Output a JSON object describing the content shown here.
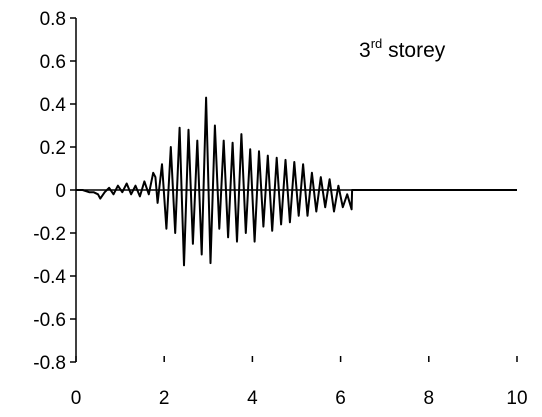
{
  "chart_data": {
    "type": "line",
    "title": "",
    "xlabel": "",
    "ylabel": "",
    "xlim": [
      0,
      10
    ],
    "ylim": [
      -0.8,
      0.8
    ],
    "x_ticks": [
      0,
      2,
      4,
      6,
      8,
      10
    ],
    "x_tick_labels": [
      "0",
      "2",
      "4",
      "6",
      "8",
      "10"
    ],
    "y_ticks": [
      0.8,
      0.6,
      0.4,
      0.2,
      0,
      -0.2,
      -0.4,
      -0.6,
      -0.8
    ],
    "y_tick_labels": [
      "0.8",
      "0.6",
      "0.4",
      "0.2",
      "0",
      "-0.2",
      "-0.4",
      "-0.6",
      "-0.8"
    ],
    "grid": false,
    "legend": "none",
    "line_color": "#000000",
    "annotation": {
      "main": "3",
      "sup": "rd",
      "rest": " storey"
    },
    "series": [
      {
        "x": [
          0.0,
          0.15,
          0.3,
          0.4,
          0.5,
          0.55,
          0.65,
          0.75,
          0.85,
          0.95,
          1.05,
          1.15,
          1.25,
          1.35,
          1.45,
          1.55,
          1.65,
          1.75,
          1.8,
          1.85,
          1.95,
          2.05,
          2.15,
          2.25,
          2.35,
          2.45,
          2.55,
          2.65,
          2.75,
          2.85,
          2.95,
          3.05,
          3.15,
          3.25,
          3.35,
          3.45,
          3.55,
          3.65,
          3.75,
          3.85,
          3.95,
          4.05,
          4.15,
          4.25,
          4.35,
          4.45,
          4.55,
          4.65,
          4.75,
          4.85,
          4.95,
          5.05,
          5.15,
          5.25,
          5.35,
          5.45,
          5.55,
          5.65,
          5.75,
          5.85,
          5.95,
          6.05,
          6.15,
          6.25,
          6.26,
          6.4,
          7.0,
          8.0,
          9.0,
          10.0
        ],
        "y": [
          0.0,
          0.0,
          -0.01,
          -0.01,
          -0.02,
          -0.04,
          -0.01,
          0.01,
          -0.02,
          0.02,
          -0.01,
          0.03,
          -0.02,
          0.02,
          -0.03,
          0.04,
          -0.02,
          0.08,
          0.06,
          -0.06,
          0.12,
          -0.18,
          0.2,
          -0.2,
          0.29,
          -0.35,
          0.28,
          -0.25,
          0.23,
          -0.3,
          0.43,
          -0.34,
          0.3,
          -0.18,
          0.23,
          -0.22,
          0.22,
          -0.24,
          0.26,
          -0.2,
          0.19,
          -0.24,
          0.18,
          -0.17,
          0.16,
          -0.19,
          0.15,
          -0.16,
          0.14,
          -0.15,
          0.13,
          -0.12,
          0.12,
          -0.12,
          0.08,
          -0.1,
          0.06,
          -0.08,
          0.05,
          -0.1,
          0.02,
          -0.08,
          -0.02,
          -0.09,
          0.0,
          0.0,
          0.0,
          0.0,
          0.0,
          0.0
        ]
      }
    ]
  }
}
